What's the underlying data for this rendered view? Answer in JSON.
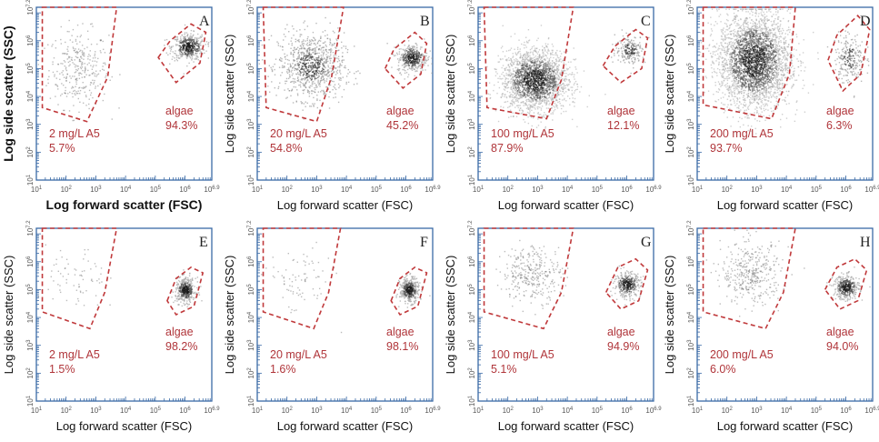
{
  "chart_data": [
    {
      "type": "scatter",
      "panel_letter": "A",
      "xlabel": "Log forward scatter (FSC)",
      "ylabel": "Log side scatter (SSC)",
      "label_weight": "bold",
      "xlim": [
        1,
        6.9
      ],
      "ylim": [
        1,
        7.2
      ],
      "x_ticks": [
        "10^1",
        "10^2",
        "10^3",
        "10^4",
        "10^5",
        "10^6",
        "10^6.9"
      ],
      "y_ticks": [
        "10^1",
        "10^2",
        "10^3",
        "10^4",
        "10^5",
        "10^6",
        "10^7.2"
      ],
      "gates": [
        {
          "label": "2 mg/L A5",
          "percent": "5.7%",
          "polygon": [
            [
              1.2,
              7.2
            ],
            [
              3.7,
              7.2
            ],
            [
              3.4,
              4.7
            ],
            [
              2.7,
              3.1
            ],
            [
              1.2,
              3.6
            ]
          ]
        },
        {
          "label": "algae",
          "percent": "94.3%",
          "polygon": [
            [
              5.1,
              5.4
            ],
            [
              5.5,
              6.0
            ],
            [
              6.2,
              6.6
            ],
            [
              6.7,
              6.3
            ],
            [
              6.5,
              5.2
            ],
            [
              5.7,
              4.5
            ]
          ]
        }
      ],
      "populations": [
        {
          "center": [
            2.4,
            5.0
          ],
          "spread": [
            0.5,
            0.7
          ],
          "n": 320,
          "density": "sparse"
        },
        {
          "center": [
            6.1,
            5.8
          ],
          "spread": [
            0.28,
            0.24
          ],
          "n": 450,
          "density": "dense"
        }
      ]
    },
    {
      "type": "scatter",
      "panel_letter": "B",
      "xlabel": "Log forward scatter (FSC)",
      "ylabel": "Log side scatter (SSC)",
      "label_weight": "normal",
      "xlim": [
        1,
        6.9
      ],
      "ylim": [
        1,
        7.2
      ],
      "x_ticks": [
        "10^1",
        "10^2",
        "10^3",
        "10^4",
        "10^5",
        "10^6",
        "10^6.9"
      ],
      "y_ticks": [
        "10^1",
        "10^2",
        "10^3",
        "10^4",
        "10^5",
        "10^6",
        "10^7.2"
      ],
      "gates": [
        {
          "label": "20 mg/L A5",
          "percent": "54.8%",
          "polygon": [
            [
              1.2,
              7.2
            ],
            [
              3.9,
              7.2
            ],
            [
              3.5,
              4.7
            ],
            [
              3.0,
              3.1
            ],
            [
              1.3,
              3.6
            ]
          ]
        },
        {
          "label": "algae",
          "percent": "45.2%",
          "polygon": [
            [
              5.3,
              5.0
            ],
            [
              5.6,
              5.7
            ],
            [
              6.3,
              6.3
            ],
            [
              6.7,
              5.9
            ],
            [
              6.5,
              4.8
            ],
            [
              5.9,
              4.3
            ]
          ]
        }
      ],
      "populations": [
        {
          "center": [
            2.8,
            5.1
          ],
          "spread": [
            0.55,
            0.6
          ],
          "n": 900,
          "density": "medium"
        },
        {
          "center": [
            6.2,
            5.4
          ],
          "spread": [
            0.25,
            0.25
          ],
          "n": 400,
          "density": "dense"
        }
      ]
    },
    {
      "type": "scatter",
      "panel_letter": "C",
      "xlabel": "Log forward scatter (FSC)",
      "ylabel": "Log side scatter (SSC)",
      "label_weight": "normal",
      "xlim": [
        1,
        6.9
      ],
      "ylim": [
        1,
        7.2
      ],
      "x_ticks": [
        "10^1",
        "10^2",
        "10^3",
        "10^4",
        "10^5",
        "10^6",
        "10^6.9"
      ],
      "y_ticks": [
        "10^1",
        "10^2",
        "10^3",
        "10^4",
        "10^5",
        "10^6",
        "10^7.2"
      ],
      "gates": [
        {
          "label": "100 mg/L A5",
          "percent": "87.9%",
          "polygon": [
            [
              1.2,
              7.2
            ],
            [
              4.2,
              7.2
            ],
            [
              3.8,
              4.6
            ],
            [
              3.3,
              3.2
            ],
            [
              1.3,
              3.6
            ]
          ]
        },
        {
          "label": "algae",
          "percent": "12.1%",
          "polygon": [
            [
              5.2,
              5.1
            ],
            [
              5.6,
              5.8
            ],
            [
              6.3,
              6.4
            ],
            [
              6.7,
              6.1
            ],
            [
              6.5,
              5.0
            ],
            [
              5.8,
              4.5
            ]
          ]
        }
      ],
      "populations": [
        {
          "center": [
            2.9,
            4.6
          ],
          "spread": [
            0.55,
            0.55
          ],
          "n": 2200,
          "density": "very-dense"
        },
        {
          "center": [
            6.1,
            5.7
          ],
          "spread": [
            0.25,
            0.25
          ],
          "n": 220,
          "density": "medium"
        }
      ]
    },
    {
      "type": "scatter",
      "panel_letter": "D",
      "xlabel": "Log forward scatter (FSC)",
      "ylabel": "Log side scatter (SSC)",
      "label_weight": "normal",
      "xlim": [
        1,
        6.9
      ],
      "ylim": [
        1,
        7.2
      ],
      "x_ticks": [
        "10^1",
        "10^2",
        "10^3",
        "10^4",
        "10^5",
        "10^6",
        "10^6.9"
      ],
      "y_ticks": [
        "10^1",
        "10^2",
        "10^3",
        "10^4",
        "10^5",
        "10^6",
        "10^7.2"
      ],
      "gates": [
        {
          "label": "200 mg/L A5",
          "percent": "93.7%",
          "polygon": [
            [
              1.2,
              7.2
            ],
            [
              4.3,
              7.2
            ],
            [
              4.1,
              4.8
            ],
            [
              3.5,
              3.2
            ],
            [
              1.2,
              3.7
            ]
          ]
        },
        {
          "label": "algae",
          "percent": "6.3%",
          "polygon": [
            [
              5.4,
              5.3
            ],
            [
              5.7,
              6.2
            ],
            [
              6.4,
              6.9
            ],
            [
              6.8,
              6.4
            ],
            [
              6.5,
              4.8
            ],
            [
              5.9,
              4.2
            ]
          ]
        }
      ],
      "populations": [
        {
          "center": [
            2.9,
            5.3
          ],
          "spread": [
            0.6,
            0.85
          ],
          "n": 3200,
          "density": "very-dense"
        },
        {
          "center": [
            6.1,
            5.4
          ],
          "spread": [
            0.25,
            0.45
          ],
          "n": 240,
          "density": "medium"
        }
      ]
    },
    {
      "type": "scatter",
      "panel_letter": "E",
      "xlabel": "Log forward scatter (FSC)",
      "ylabel": "Log side scatter (SSC)",
      "label_weight": "normal",
      "xlim": [
        1,
        6.9
      ],
      "ylim": [
        1,
        7.2
      ],
      "x_ticks": [
        "10^1",
        "10^2",
        "10^3",
        "10^4",
        "10^5",
        "10^6",
        "10^6.9"
      ],
      "y_ticks": [
        "10^1",
        "10^2",
        "10^3",
        "10^4",
        "10^5",
        "10^6",
        "10^7.2"
      ],
      "gates": [
        {
          "label": "2 mg/L A5",
          "percent": "1.5%",
          "polygon": [
            [
              1.2,
              7.2
            ],
            [
              3.7,
              7.2
            ],
            [
              3.3,
              4.9
            ],
            [
              2.8,
              3.6
            ],
            [
              1.2,
              4.2
            ]
          ]
        },
        {
          "label": "algae",
          "percent": "98.2%",
          "polygon": [
            [
              5.4,
              4.6
            ],
            [
              5.7,
              5.4
            ],
            [
              6.2,
              5.8
            ],
            [
              6.6,
              5.6
            ],
            [
              6.3,
              4.4
            ],
            [
              5.7,
              4.1
            ]
          ]
        }
      ],
      "populations": [
        {
          "center": [
            2.3,
            5.3
          ],
          "spread": [
            0.5,
            0.6
          ],
          "n": 70,
          "density": "sparse"
        },
        {
          "center": [
            6.0,
            5.0
          ],
          "spread": [
            0.17,
            0.22
          ],
          "n": 420,
          "density": "dense"
        }
      ]
    },
    {
      "type": "scatter",
      "panel_letter": "F",
      "xlabel": "Log forward scatter (FSC)",
      "ylabel": "Log side scatter (SSC)",
      "label_weight": "normal",
      "xlim": [
        1,
        6.9
      ],
      "ylim": [
        1,
        7.2
      ],
      "x_ticks": [
        "10^1",
        "10^2",
        "10^3",
        "10^4",
        "10^5",
        "10^6",
        "10^6.9"
      ],
      "y_ticks": [
        "10^1",
        "10^2",
        "10^3",
        "10^4",
        "10^5",
        "10^6",
        "10^7.2"
      ],
      "gates": [
        {
          "label": "20 mg/L A5",
          "percent": "1.6%",
          "polygon": [
            [
              1.2,
              7.2
            ],
            [
              3.8,
              7.2
            ],
            [
              3.4,
              4.9
            ],
            [
              2.9,
              3.6
            ],
            [
              1.2,
              4.2
            ]
          ]
        },
        {
          "label": "algae",
          "percent": "98.1%",
          "polygon": [
            [
              5.5,
              4.6
            ],
            [
              5.8,
              5.4
            ],
            [
              6.3,
              5.8
            ],
            [
              6.7,
              5.6
            ],
            [
              6.4,
              4.4
            ],
            [
              5.8,
              4.1
            ]
          ]
        }
      ],
      "populations": [
        {
          "center": [
            2.4,
            5.3
          ],
          "spread": [
            0.55,
            0.6
          ],
          "n": 80,
          "density": "sparse"
        },
        {
          "center": [
            6.1,
            5.0
          ],
          "spread": [
            0.16,
            0.22
          ],
          "n": 420,
          "density": "dense"
        }
      ]
    },
    {
      "type": "scatter",
      "panel_letter": "G",
      "xlabel": "Log forward scatter (FSC)",
      "ylabel": "Log side scatter (SSC)",
      "label_weight": "normal",
      "xlim": [
        1,
        6.9
      ],
      "ylim": [
        1,
        7.2
      ],
      "x_ticks": [
        "10^1",
        "10^2",
        "10^3",
        "10^4",
        "10^5",
        "10^6",
        "10^6.9"
      ],
      "y_ticks": [
        "10^1",
        "10^2",
        "10^3",
        "10^4",
        "10^5",
        "10^6",
        "10^7.2"
      ],
      "gates": [
        {
          "label": "100 mg/L A5",
          "percent": "5.1%",
          "polygon": [
            [
              1.2,
              7.2
            ],
            [
              4.2,
              7.2
            ],
            [
              3.8,
              4.9
            ],
            [
              3.2,
              3.6
            ],
            [
              1.2,
              4.2
            ]
          ]
        },
        {
          "label": "algae",
          "percent": "94.9%",
          "polygon": [
            [
              5.3,
              4.9
            ],
            [
              5.7,
              5.8
            ],
            [
              6.3,
              6.1
            ],
            [
              6.7,
              5.7
            ],
            [
              6.4,
              4.6
            ],
            [
              5.8,
              4.3
            ]
          ]
        }
      ],
      "populations": [
        {
          "center": [
            2.8,
            5.6
          ],
          "spread": [
            0.5,
            0.5
          ],
          "n": 320,
          "density": "sparse"
        },
        {
          "center": [
            6.0,
            5.2
          ],
          "spread": [
            0.22,
            0.22
          ],
          "n": 380,
          "density": "dense"
        }
      ]
    },
    {
      "type": "scatter",
      "panel_letter": "H",
      "xlabel": "Log forward scatter (FSC)",
      "ylabel": "Log side scatter (SSC)",
      "label_weight": "normal",
      "xlim": [
        1,
        6.9
      ],
      "ylim": [
        1,
        7.2
      ],
      "x_ticks": [
        "10^1",
        "10^2",
        "10^3",
        "10^4",
        "10^5",
        "10^6",
        "10^6.9"
      ],
      "y_ticks": [
        "10^1",
        "10^2",
        "10^3",
        "10^4",
        "10^5",
        "10^6",
        "10^7.2"
      ],
      "gates": [
        {
          "label": "200 mg/L A5",
          "percent": "6.0%",
          "polygon": [
            [
              1.2,
              7.2
            ],
            [
              4.3,
              7.2
            ],
            [
              3.9,
              4.9
            ],
            [
              3.3,
              3.6
            ],
            [
              1.2,
              4.2
            ]
          ]
        },
        {
          "label": "algae",
          "percent": "94.0%",
          "polygon": [
            [
              5.3,
              5.0
            ],
            [
              5.7,
              5.8
            ],
            [
              6.3,
              6.1
            ],
            [
              6.7,
              5.7
            ],
            [
              6.4,
              4.6
            ],
            [
              5.8,
              4.3
            ]
          ]
        }
      ],
      "populations": [
        {
          "center": [
            2.8,
            5.6
          ],
          "spread": [
            0.5,
            0.55
          ],
          "n": 380,
          "density": "sparse"
        },
        {
          "center": [
            6.0,
            5.1
          ],
          "spread": [
            0.22,
            0.22
          ],
          "n": 380,
          "density": "dense"
        }
      ]
    }
  ],
  "colors": {
    "axis": "#3a6aa6",
    "gate": "#c0393b",
    "gate_text": "#b0353a",
    "dot": "#6b6b6b",
    "letter": "#222222",
    "label": "#111111"
  }
}
